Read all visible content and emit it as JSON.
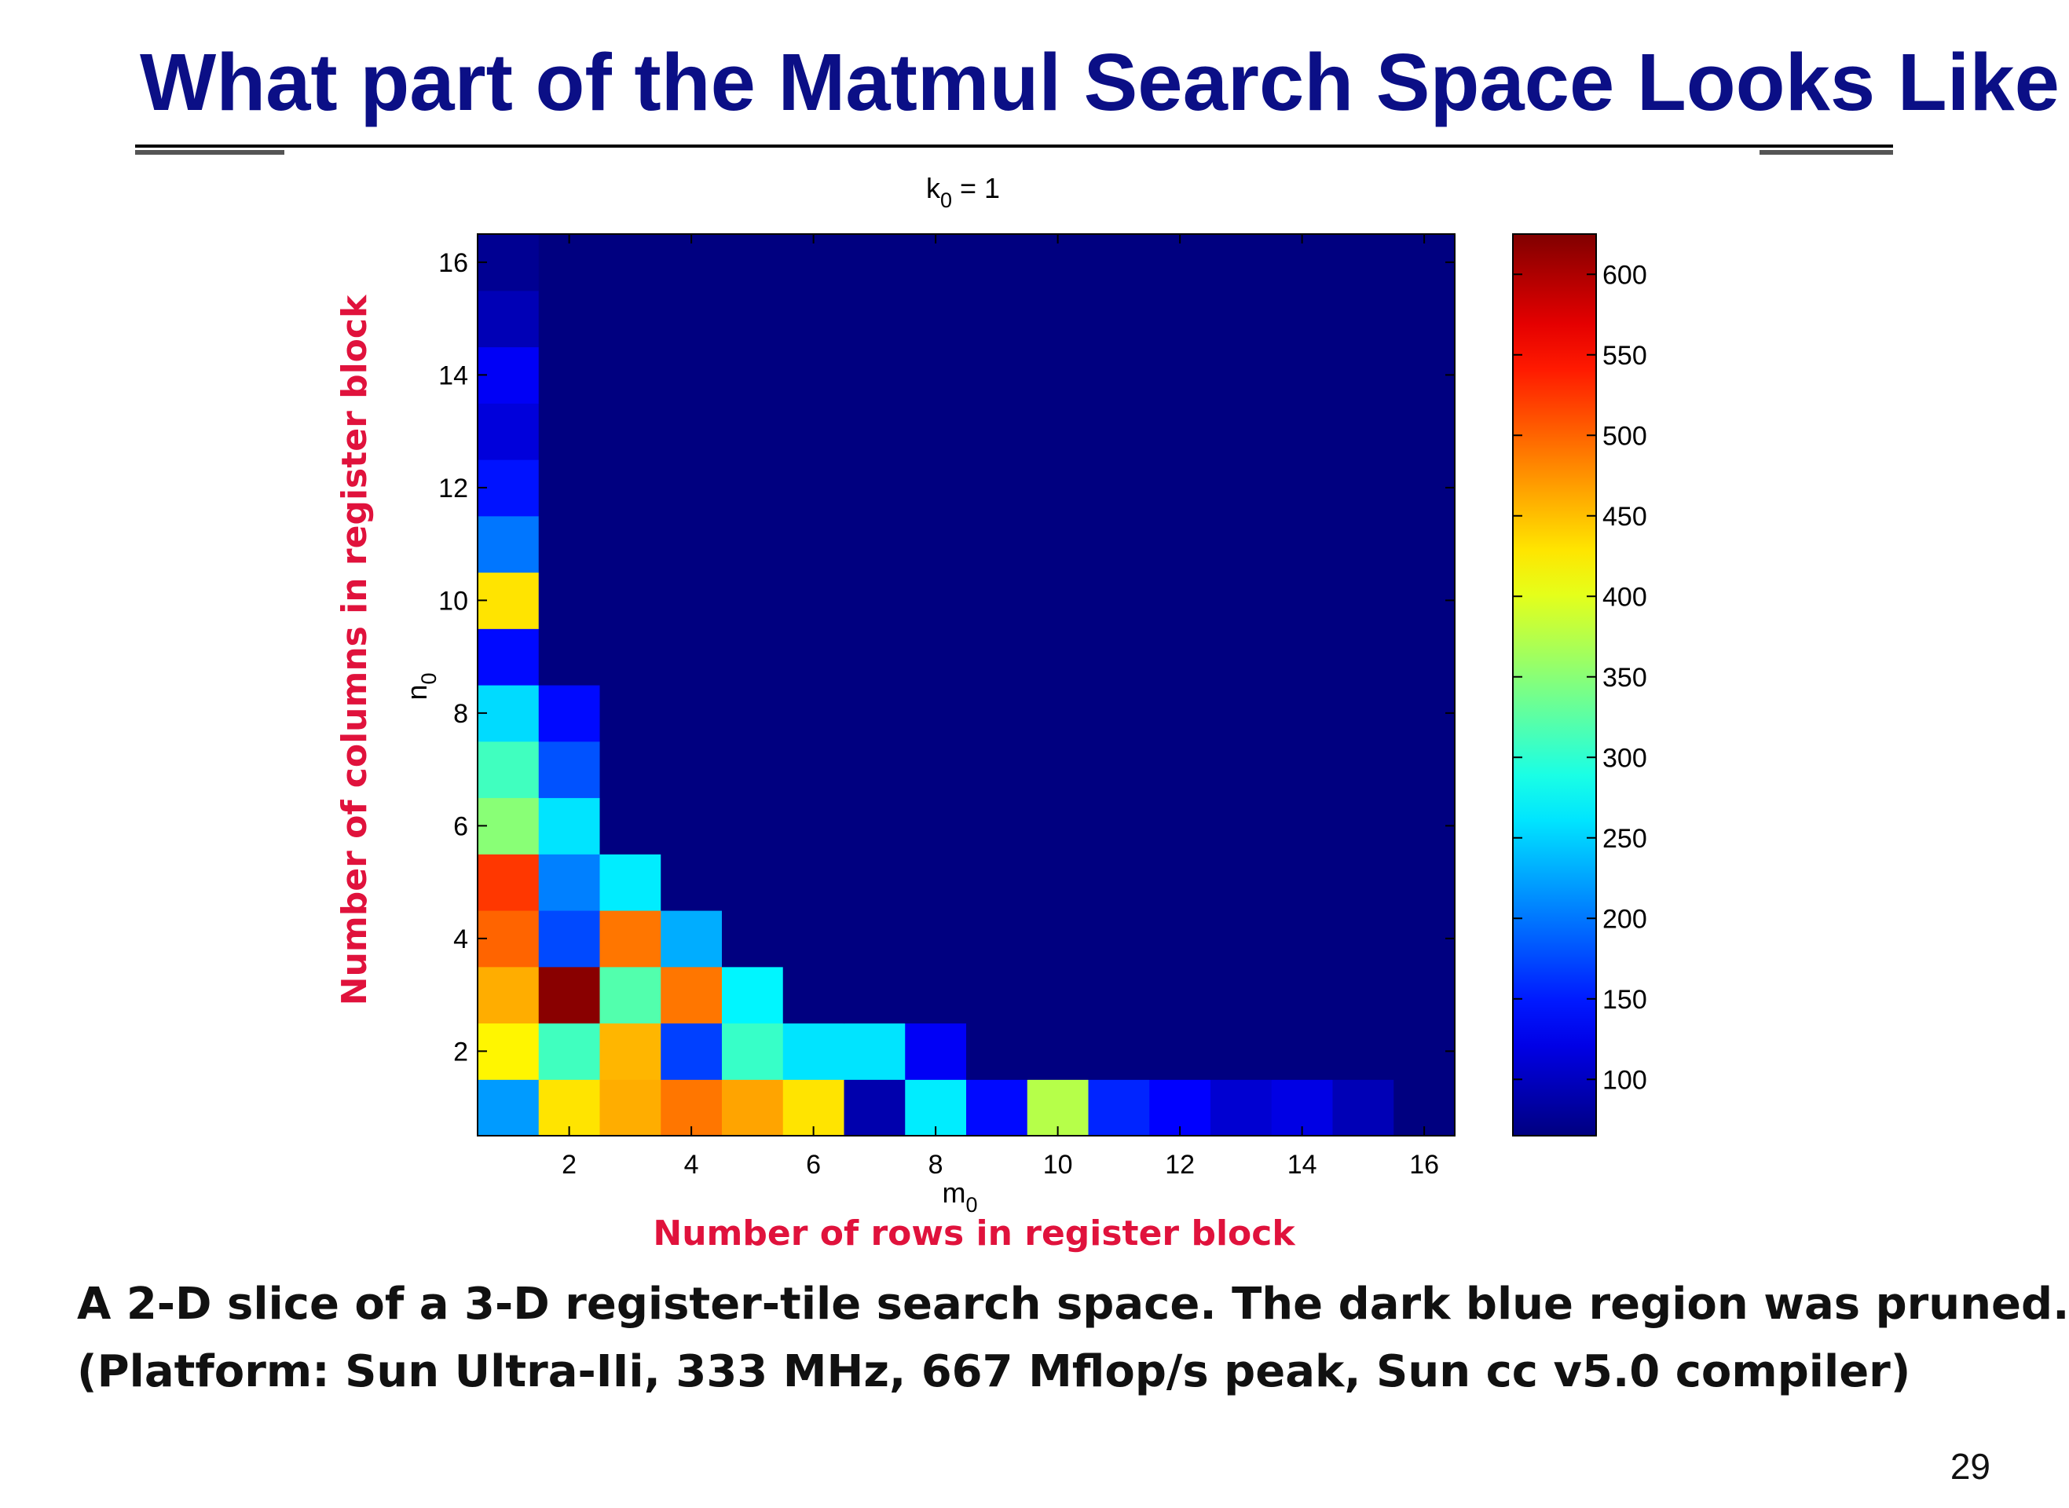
{
  "slide": {
    "title": "What part of the Matmul Search Space Looks Like",
    "x_caption": "Number of rows in register block",
    "y_caption": "Number of columns in register block",
    "description": [
      "A 2-D slice of a 3-D register-tile search space. The dark blue region was pruned.",
      "(Platform: Sun Ultra-IIi, 333 MHz, 667 Mflop/s peak, Sun cc v5.0 compiler)"
    ],
    "page_number": "29"
  },
  "chart_data": {
    "type": "heatmap",
    "title": "k0 = 1",
    "title_parts": {
      "base": "k",
      "sub": "0",
      "rest": " = 1"
    },
    "xlabel": "m0",
    "xlabel_parts": {
      "base": "m",
      "sub": "0"
    },
    "ylabel": "n0",
    "ylabel_parts": {
      "base": "n",
      "sub": "0"
    },
    "x": [
      1,
      2,
      3,
      4,
      5,
      6,
      7,
      8,
      9,
      10,
      11,
      12,
      13,
      14,
      15,
      16
    ],
    "y": [
      1,
      2,
      3,
      4,
      5,
      6,
      7,
      8,
      9,
      10,
      11,
      12,
      13,
      14,
      15,
      16
    ],
    "xlim": [
      0.5,
      16.5
    ],
    "ylim": [
      0.5,
      16.5
    ],
    "x_ticks": [
      2,
      4,
      6,
      8,
      10,
      12,
      14,
      16
    ],
    "y_ticks": [
      2,
      4,
      6,
      8,
      10,
      12,
      14,
      16
    ],
    "colorbar": {
      "min": 65,
      "max": 625,
      "ticks": [
        100,
        150,
        200,
        250,
        300,
        350,
        400,
        450,
        500,
        550,
        600
      ],
      "colormap": "jet"
    },
    "pruned_value": 65,
    "values": [
      [
        220,
        430,
        460,
        490,
        465,
        430,
        90,
        265,
        140,
        375,
        155,
        135,
        110,
        120,
        95,
        65
      ],
      [
        420,
        310,
        455,
        170,
        305,
        260,
        260,
        130,
        65,
        65,
        65,
        65,
        65,
        65,
        65,
        65
      ],
      [
        460,
        620,
        320,
        490,
        270,
        65,
        65,
        65,
        65,
        65,
        65,
        65,
        65,
        65,
        65,
        65
      ],
      [
        500,
        175,
        490,
        230,
        65,
        65,
        65,
        65,
        65,
        65,
        65,
        65,
        65,
        65,
        65,
        65
      ],
      [
        525,
        205,
        265,
        65,
        65,
        65,
        65,
        65,
        65,
        65,
        65,
        65,
        65,
        65,
        65,
        65
      ],
      [
        350,
        260,
        65,
        65,
        65,
        65,
        65,
        65,
        65,
        65,
        65,
        65,
        65,
        65,
        65,
        65
      ],
      [
        310,
        180,
        65,
        65,
        65,
        65,
        65,
        65,
        65,
        65,
        65,
        65,
        65,
        65,
        65,
        65
      ],
      [
        255,
        140,
        65,
        65,
        65,
        65,
        65,
        65,
        65,
        65,
        65,
        65,
        65,
        65,
        65,
        65
      ],
      [
        140,
        65,
        65,
        65,
        65,
        65,
        65,
        65,
        65,
        65,
        65,
        65,
        65,
        65,
        65,
        65
      ],
      [
        430,
        65,
        65,
        65,
        65,
        65,
        65,
        65,
        65,
        65,
        65,
        65,
        65,
        65,
        65,
        65
      ],
      [
        200,
        65,
        65,
        65,
        65,
        65,
        65,
        65,
        65,
        65,
        65,
        65,
        65,
        65,
        65,
        65
      ],
      [
        145,
        65,
        65,
        65,
        65,
        65,
        65,
        65,
        65,
        65,
        65,
        65,
        65,
        65,
        65,
        65
      ],
      [
        115,
        65,
        65,
        65,
        65,
        65,
        65,
        65,
        65,
        65,
        65,
        65,
        65,
        65,
        65,
        65
      ],
      [
        130,
        65,
        65,
        65,
        65,
        65,
        65,
        65,
        65,
        65,
        65,
        65,
        65,
        65,
        65,
        65
      ],
      [
        95,
        65,
        65,
        65,
        65,
        65,
        65,
        65,
        65,
        65,
        65,
        65,
        65,
        65,
        65,
        65
      ],
      [
        75,
        65,
        65,
        65,
        65,
        65,
        65,
        65,
        65,
        65,
        65,
        65,
        65,
        65,
        65,
        65
      ]
    ],
    "grid": false
  }
}
